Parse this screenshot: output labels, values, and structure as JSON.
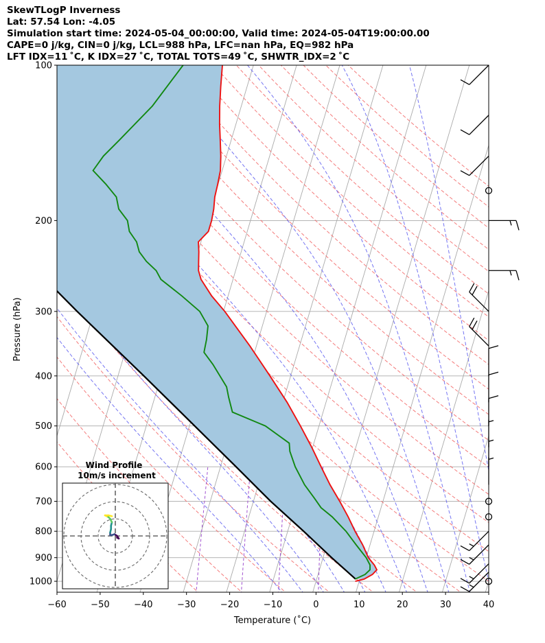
{
  "header": {
    "line1": "SkewTLogP Inverness",
    "line2": "Lat: 57.54   Lon: -4.05",
    "line3": "Simulation start time: 2024-05-04_00:00:00, Valid time: 2024-05-04T19:00:00.00",
    "line4": "CAPE=0 j/kg, CIN=0 j/kg, LCL=988 hPa, LFC=nan hPa, EQ=982 hPa",
    "line5": "LFT IDX=11 ˚C, K IDX=27 ˚C, TOTAL TOTS=49 ˚C, SHWTR_IDX=2 ˚C"
  },
  "colors": {
    "temperature": "#ee1111",
    "dewpoint": "#118811",
    "parcel": "#000000",
    "cape_fill": "#a4c8e0",
    "dry_adiabat": "#f26464",
    "moist_adiabat": "#5c5cf0",
    "mixing_ratio": "#a050d0",
    "isotherm": "#aaaaaa"
  },
  "chart_data": {
    "type": "skewt",
    "xlabel": "Temperature (˚C)",
    "ylabel": "Pressure (hPa)",
    "xlim": [
      -60,
      40
    ],
    "plim": [
      1050,
      100
    ],
    "x_ticks": [
      -60,
      -50,
      -40,
      -30,
      -20,
      -10,
      0,
      10,
      20,
      30,
      40
    ],
    "x_tick_labels": [
      "−60",
      "−50",
      "−40",
      "−30",
      "−20",
      "−10",
      "0",
      "10",
      "20",
      "30",
      "40"
    ],
    "p_ticks": [
      1000,
      900,
      800,
      700,
      600,
      500,
      400,
      300,
      200,
      100
    ],
    "p_tick_labels": [
      "1000",
      "900",
      "800",
      "700",
      "600",
      "500",
      "400",
      "300",
      "200",
      "100"
    ],
    "grid": true,
    "temperature_profile": [
      [
        1000,
        9.1
      ],
      [
        990,
        11.0
      ],
      [
        970,
        12.6
      ],
      [
        950,
        13.3
      ],
      [
        930,
        12.4
      ],
      [
        900,
        10.5
      ],
      [
        850,
        8.3
      ],
      [
        800,
        5.6
      ],
      [
        750,
        3.0
      ],
      [
        700,
        0.0
      ],
      [
        650,
        -3.4
      ],
      [
        600,
        -6.7
      ],
      [
        550,
        -10.2
      ],
      [
        500,
        -14.3
      ],
      [
        450,
        -19.0
      ],
      [
        400,
        -24.8
      ],
      [
        350,
        -31.5
      ],
      [
        300,
        -39.7
      ],
      [
        280,
        -43.8
      ],
      [
        260,
        -47.4
      ],
      [
        250,
        -48.6
      ],
      [
        240,
        -49.2
      ],
      [
        230,
        -49.8
      ],
      [
        220,
        -50.6
      ],
      [
        210,
        -49.0
      ],
      [
        200,
        -49.0
      ],
      [
        190,
        -49.3
      ],
      [
        180,
        -49.9
      ],
      [
        170,
        -50.1
      ],
      [
        160,
        -50.4
      ],
      [
        150,
        -51.3
      ],
      [
        140,
        -52.5
      ],
      [
        130,
        -53.8
      ],
      [
        120,
        -55.0
      ],
      [
        110,
        -56.1
      ],
      [
        100,
        -57.2
      ]
    ],
    "dewpoint_profile": [
      [
        990,
        8.9
      ],
      [
        970,
        10.9
      ],
      [
        950,
        11.7
      ],
      [
        930,
        11.4
      ],
      [
        900,
        10.0
      ],
      [
        850,
        6.8
      ],
      [
        800,
        3.5
      ],
      [
        750,
        -0.7
      ],
      [
        720,
        -3.9
      ],
      [
        690,
        -6.1
      ],
      [
        650,
        -9.3
      ],
      [
        600,
        -12.7
      ],
      [
        560,
        -15.0
      ],
      [
        540,
        -15.7
      ],
      [
        500,
        -22.4
      ],
      [
        470,
        -31.0
      ],
      [
        440,
        -32.9
      ],
      [
        420,
        -34.1
      ],
      [
        380,
        -38.8
      ],
      [
        360,
        -41.7
      ],
      [
        340,
        -42.0
      ],
      [
        320,
        -42.6
      ],
      [
        300,
        -45.5
      ],
      [
        280,
        -50.7
      ],
      [
        260,
        -56.7
      ],
      [
        250,
        -58.4
      ],
      [
        240,
        -61.3
      ],
      [
        230,
        -63.6
      ],
      [
        220,
        -64.9
      ],
      [
        210,
        -67.3
      ],
      [
        200,
        -68.5
      ],
      [
        190,
        -71.3
      ],
      [
        180,
        -72.7
      ],
      [
        170,
        -76.0
      ],
      [
        160,
        -79.9
      ],
      [
        150,
        -78.5
      ],
      [
        140,
        -76.0
      ],
      [
        120,
        -70.6
      ],
      [
        100,
        -66.3
      ]
    ],
    "parcel_profile": [
      [
        990,
        9.0
      ],
      [
        900,
        2.0
      ],
      [
        800,
        -6.3
      ],
      [
        700,
        -16.0
      ],
      [
        600,
        -26.4
      ],
      [
        500,
        -38.8
      ],
      [
        400,
        -54.0
      ],
      [
        300,
        -73.9
      ],
      [
        200,
        -101.0
      ],
      [
        100,
        -145.8
      ]
    ],
    "wind_barbs": [
      {
        "p": 1000,
        "speed_kt": 0,
        "direction": "calm"
      },
      {
        "p": 960,
        "speed_kt": 15,
        "direction": "SW"
      },
      {
        "p": 925,
        "speed_kt": 15,
        "direction": "SW"
      },
      {
        "p": 850,
        "speed_kt": 15,
        "direction": "SW"
      },
      {
        "p": 800,
        "speed_kt": 15,
        "direction": "SW"
      },
      {
        "p": 750,
        "speed_kt": 0,
        "direction": "calm"
      },
      {
        "p": 700,
        "speed_kt": 0,
        "direction": "calm"
      },
      {
        "p": 650,
        "speed_kt": 5,
        "direction": "N"
      },
      {
        "p": 600,
        "speed_kt": 5,
        "direction": "N"
      },
      {
        "p": 550,
        "speed_kt": 5,
        "direction": "N"
      },
      {
        "p": 500,
        "speed_kt": 10,
        "direction": "N"
      },
      {
        "p": 450,
        "speed_kt": 10,
        "direction": "N"
      },
      {
        "p": 400,
        "speed_kt": 10,
        "direction": "N"
      },
      {
        "p": 350,
        "speed_kt": 20,
        "direction": "NW"
      },
      {
        "p": 300,
        "speed_kt": 20,
        "direction": "NW"
      },
      {
        "p": 250,
        "speed_kt": 15,
        "direction": "E"
      },
      {
        "p": 200,
        "speed_kt": 15,
        "direction": "E"
      },
      {
        "p": 175,
        "speed_kt": 0,
        "direction": "calm"
      },
      {
        "p": 150,
        "speed_kt": 10,
        "direction": "SW"
      },
      {
        "p": 125,
        "speed_kt": 10,
        "direction": "SW"
      },
      {
        "p": 100,
        "speed_kt": 10,
        "direction": "SW"
      }
    ],
    "hodograph": {
      "title": "Wind Profile",
      "subtitle": "10m/s increment",
      "rings_ms": [
        10,
        20,
        30
      ],
      "trace_ms": [
        [
          1,
          -1
        ],
        [
          2,
          -1.5
        ],
        [
          1,
          0
        ],
        [
          -0.5,
          1
        ],
        [
          -2,
          0.5
        ],
        [
          -3,
          0.5
        ],
        [
          -3,
          2
        ],
        [
          -2.5,
          4
        ],
        [
          -2.5,
          6
        ],
        [
          -2,
          8
        ],
        [
          -3,
          10
        ],
        [
          -4,
          11
        ],
        [
          -5,
          11.5
        ],
        [
          -6,
          12
        ],
        [
          -4,
          12
        ],
        [
          -2,
          11.5
        ]
      ]
    }
  }
}
